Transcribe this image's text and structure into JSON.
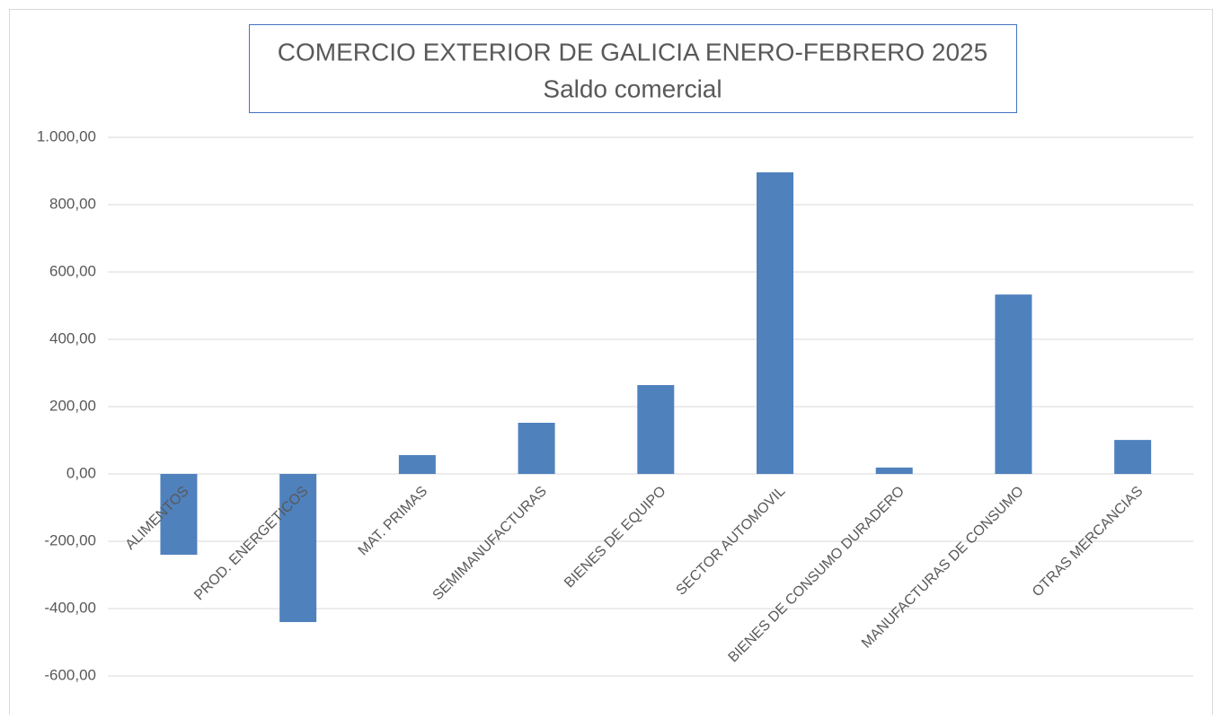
{
  "chart_data": {
    "type": "bar",
    "title": "COMERCIO EXTERIOR DE GALICIA ENERO-FEBRERO 2025",
    "subtitle": "Saldo comercial",
    "categories": [
      "ALIMENTOS",
      "PROD. ENERGETICOS",
      "MAT. PRIMAS",
      "SEMIMANUFACTURAS",
      "BIENES DE EQUIPO",
      "SECTOR AUTOMOVIL",
      "BIENES DE CONSUMO DURADERO",
      "MANUFACTURAS DE CONSUMO",
      "OTRAS MERCANCIAS"
    ],
    "values": [
      -240,
      -440,
      56,
      152,
      264,
      896,
      19,
      533,
      101
    ],
    "color": "#4f81bd",
    "ylim": [
      -600,
      1000
    ],
    "yticks": [
      {
        "value": -600,
        "label": "-600,00"
      },
      {
        "value": -400,
        "label": "-400,00"
      },
      {
        "value": -200,
        "label": "-200,00"
      },
      {
        "value": 0,
        "label": "0,00"
      },
      {
        "value": 200,
        "label": "200,00"
      },
      {
        "value": 400,
        "label": "400,00"
      },
      {
        "value": 600,
        "label": "600,00"
      },
      {
        "value": 800,
        "label": "800,00"
      },
      {
        "value": 1000,
        "label": "1.000,00"
      }
    ],
    "grid": true
  }
}
